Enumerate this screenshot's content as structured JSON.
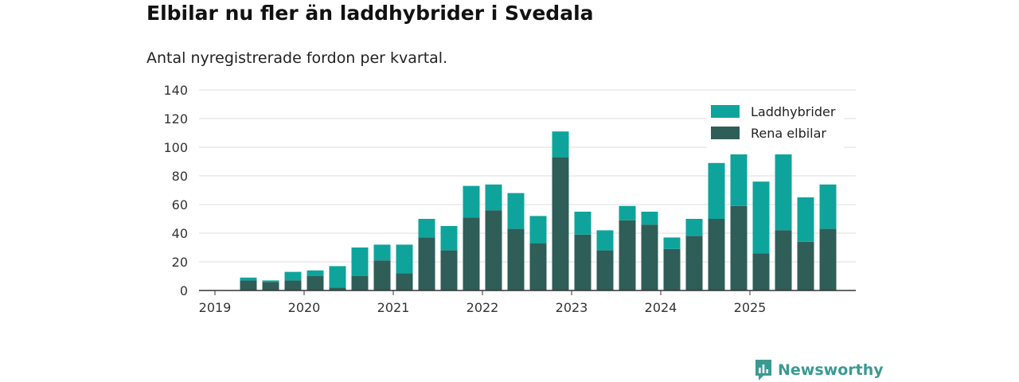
{
  "title": "Elbilar nu fler än laddhybrider i Svedala",
  "subtitle": "Antal nyregistrerade fordon per kvartal.",
  "brand": {
    "name": "Newsworthy",
    "icon": "newsworthy-logo-icon"
  },
  "colors": {
    "laddhybrider": "#0ea49c",
    "elbilar": "#2f5d57",
    "grid": "#dddddd",
    "axis": "#333333"
  },
  "chart_data": {
    "type": "bar",
    "stacked": true,
    "title": "Elbilar nu fler än laddhybrider i Svedala",
    "subtitle": "Antal nyregistrerade fordon per kvartal.",
    "xlabel": "",
    "ylabel": "",
    "ylim": [
      0,
      140
    ],
    "yticks": [
      0,
      20,
      40,
      60,
      80,
      100,
      120,
      140
    ],
    "xticks": [
      "2019",
      "2020",
      "2021",
      "2022",
      "2023",
      "2024",
      "2025"
    ],
    "grid": true,
    "legend_position": "top-right",
    "categories": [
      "2019 Q1",
      "2019 Q2",
      "2019 Q3",
      "2019 Q4",
      "2020 Q1",
      "2020 Q2",
      "2020 Q3",
      "2020 Q4",
      "2021 Q1",
      "2021 Q2",
      "2021 Q3",
      "2021 Q4",
      "2022 Q1",
      "2022 Q2",
      "2022 Q3",
      "2022 Q4",
      "2023 Q1",
      "2023 Q2",
      "2023 Q3",
      "2023 Q4",
      "2024 Q1",
      "2024 Q2",
      "2024 Q3",
      "2024 Q4",
      "2025 Q1",
      "2025 Q2",
      "2025 Q3",
      "2025 Q4"
    ],
    "series": [
      {
        "name": "Rena elbilar",
        "values": [
          0,
          7,
          6,
          7,
          10,
          2,
          10,
          21,
          12,
          37,
          28,
          51,
          56,
          43,
          33,
          93,
          39,
          28,
          49,
          46,
          29,
          38,
          50,
          59,
          26,
          42,
          34,
          43
        ]
      },
      {
        "name": "Laddhybrider",
        "values": [
          0,
          2,
          1,
          6,
          4,
          15,
          20,
          11,
          20,
          13,
          17,
          22,
          18,
          25,
          19,
          18,
          16,
          14,
          10,
          9,
          8,
          12,
          39,
          36,
          50,
          53,
          31,
          31
        ]
      }
    ],
    "legend": [
      "Laddhybrider",
      "Rena elbilar"
    ]
  }
}
